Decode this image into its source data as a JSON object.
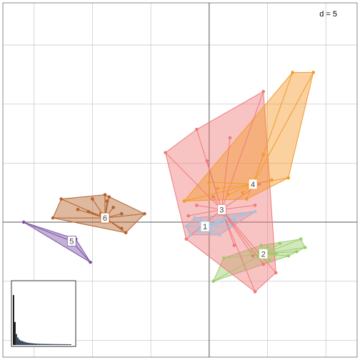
{
  "chart_data": {
    "type": "scatter",
    "title": "",
    "xlabel": "",
    "ylabel": "",
    "xlim": [
      -4.95,
      3.55
    ],
    "ylim": [
      -3.2,
      5.2
    ],
    "grid": true,
    "grid_step": 1.4,
    "scale_label": "d = 5",
    "groups": [
      {
        "label": "1",
        "color": "#9ec5e3",
        "center": [
          -0.1,
          -0.1
        ],
        "points": [
          [
            -0.55,
            -0.1
          ],
          [
            -0.35,
            0.1
          ],
          [
            -0.2,
            0.05
          ],
          [
            -0.1,
            -0.15
          ],
          [
            0.15,
            -0.05
          ],
          [
            0.4,
            0.1
          ],
          [
            0.6,
            0.05
          ],
          [
            0.8,
            0.2
          ],
          [
            1.1,
            0.25
          ],
          [
            0.05,
            -0.25
          ],
          [
            -0.45,
            -0.3
          ],
          [
            -0.25,
            -0.2
          ],
          [
            0.25,
            -0.3
          ],
          [
            0.5,
            -0.1
          ]
        ]
      },
      {
        "label": "2",
        "color": "#9acd6a",
        "center": [
          1.3,
          -0.75
        ],
        "points": [
          [
            0.1,
            -1.4
          ],
          [
            0.35,
            -0.85
          ],
          [
            1.05,
            -0.8
          ],
          [
            1.25,
            -0.55
          ],
          [
            1.4,
            -0.6
          ],
          [
            1.6,
            -0.75
          ],
          [
            1.9,
            -0.8
          ],
          [
            2.2,
            -0.4
          ],
          [
            2.3,
            -0.6
          ],
          [
            1.0,
            -0.7
          ],
          [
            1.2,
            -0.85
          ],
          [
            1.45,
            -0.9
          ],
          [
            1.7,
            -0.5
          ],
          [
            2.1,
            -0.7
          ]
        ]
      },
      {
        "label": "3",
        "color": "#f07a7a",
        "center": [
          0.3,
          0.3
        ],
        "points": [
          [
            -1.05,
            1.65
          ],
          [
            -0.3,
            2.2
          ],
          [
            0.5,
            2.0
          ],
          [
            1.3,
            3.1
          ],
          [
            1.2,
            0.9
          ],
          [
            1.1,
            0.4
          ],
          [
            -0.5,
            0.15
          ],
          [
            -0.55,
            -0.4
          ],
          [
            0.6,
            -0.55
          ],
          [
            1.05,
            -0.8
          ],
          [
            1.3,
            -1.0
          ],
          [
            1.6,
            -1.2
          ],
          [
            1.1,
            -1.65
          ],
          [
            -0.05,
            1.45
          ],
          [
            -0.3,
            0.4
          ],
          [
            0.1,
            0.6
          ]
        ]
      },
      {
        "label": "4",
        "color": "#f39a2b",
        "center": [
          1.05,
          0.9
        ],
        "points": [
          [
            -0.6,
            0.5
          ],
          [
            0.0,
            0.95
          ],
          [
            0.45,
            0.65
          ],
          [
            0.9,
            0.55
          ],
          [
            1.5,
            1.0
          ],
          [
            1.9,
            1.05
          ],
          [
            2.0,
            3.55
          ],
          [
            2.5,
            3.55
          ],
          [
            1.3,
            1.6
          ],
          [
            0.8,
            0.7
          ],
          [
            0.2,
            0.8
          ]
        ]
      },
      {
        "label": "6",
        "color": "#b5622a",
        "center": [
          -2.5,
          0.1
        ],
        "points": [
          [
            -3.75,
            0.1
          ],
          [
            -3.55,
            0.55
          ],
          [
            -2.8,
            0.55
          ],
          [
            -2.5,
            0.65
          ],
          [
            -2.4,
            0.6
          ],
          [
            -1.55,
            0.2
          ],
          [
            -2.1,
            -0.15
          ],
          [
            -2.0,
            -0.25
          ],
          [
            -3.15,
            0.3
          ],
          [
            -2.9,
            0.25
          ],
          [
            -2.6,
            0.2
          ],
          [
            -2.3,
            0.35
          ],
          [
            -2.45,
            0.5
          ],
          [
            -2.1,
            0.2
          ]
        ]
      },
      {
        "label": "5",
        "color": "#7b52a6",
        "center": [
          -3.3,
          -0.45
        ],
        "points": [
          [
            -4.45,
            0.0
          ],
          [
            -3.2,
            -0.4
          ],
          [
            -2.85,
            -0.95
          ]
        ]
      }
    ],
    "eigenvalues": [
      1.0,
      0.46,
      0.22,
      0.15,
      0.11,
      0.09,
      0.08,
      0.07,
      0.06,
      0.05,
      0.045,
      0.04,
      0.037,
      0.034,
      0.031,
      0.029,
      0.027,
      0.025,
      0.024,
      0.023,
      0.022,
      0.021,
      0.021,
      0.02,
      0.02,
      0.019,
      0.019,
      0.018,
      0.018,
      0.018,
      0.017,
      0.017,
      0.017,
      0.016,
      0.016,
      0.016,
      0.016,
      0.015,
      0.015,
      0.015
    ]
  }
}
